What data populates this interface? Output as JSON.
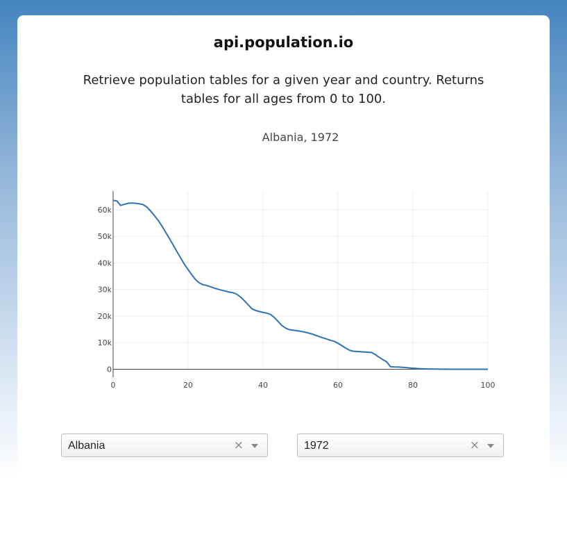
{
  "header": {
    "title": "api.population.io",
    "description": "Retrieve population tables for a given year and country. Returns tables for all ages from 0 to 100."
  },
  "filters": {
    "country": {
      "value": "Albania",
      "clear_glyph": "×"
    },
    "year": {
      "value": "1972",
      "clear_glyph": "×"
    }
  },
  "colors": {
    "line": "#2f72b4",
    "grid": "#ececec",
    "axis": "#444444"
  },
  "chart_data": {
    "type": "line",
    "title": "Albania, 1972",
    "xlabel": "",
    "ylabel": "",
    "xlim": [
      0,
      100
    ],
    "ylim": [
      -3000,
      67000
    ],
    "x_ticks": [
      0,
      20,
      40,
      60,
      80,
      100
    ],
    "x_tick_labels": [
      "0",
      "20",
      "40",
      "60",
      "80",
      "100"
    ],
    "y_ticks": [
      0,
      10000,
      20000,
      30000,
      40000,
      50000,
      60000
    ],
    "y_tick_labels": [
      "0",
      "10k",
      "20k",
      "30k",
      "40k",
      "50k",
      "60k"
    ],
    "grid": true,
    "legend": "none",
    "series": [
      {
        "x": [
          0,
          1,
          2,
          3,
          4,
          5,
          6,
          7,
          8,
          9,
          10,
          11,
          12,
          13,
          14,
          15,
          16,
          17,
          18,
          19,
          20,
          21,
          22,
          23,
          24,
          25,
          26,
          27,
          28,
          29,
          30,
          31,
          32,
          33,
          34,
          35,
          36,
          37,
          38,
          39,
          40,
          41,
          42,
          43,
          44,
          45,
          46,
          47,
          48,
          49,
          50,
          51,
          52,
          53,
          54,
          55,
          56,
          57,
          58,
          59,
          60,
          61,
          62,
          63,
          64,
          65,
          66,
          67,
          68,
          69,
          70,
          71,
          72,
          73,
          74,
          75,
          76,
          77,
          78,
          79,
          80,
          81,
          82,
          83,
          84,
          85,
          86,
          87,
          88,
          89,
          90,
          91,
          92,
          93,
          94,
          95,
          96,
          97,
          98,
          99,
          100
        ],
        "y": [
          63500,
          63300,
          61600,
          62000,
          62400,
          62500,
          62400,
          62200,
          61900,
          61000,
          59500,
          57800,
          56000,
          53900,
          51600,
          49200,
          46800,
          44300,
          41900,
          39500,
          37500,
          35500,
          33700,
          32500,
          31800,
          31500,
          31000,
          30500,
          30100,
          29700,
          29400,
          29000,
          28800,
          28200,
          27200,
          25800,
          24300,
          22800,
          22100,
          21700,
          21400,
          21100,
          20600,
          19500,
          18000,
          16500,
          15500,
          14900,
          14700,
          14500,
          14300,
          14000,
          13700,
          13300,
          12800,
          12300,
          11800,
          11400,
          10900,
          10500,
          9800,
          8900,
          8000,
          7200,
          6800,
          6700,
          6600,
          6500,
          6400,
          6300,
          5500,
          4500,
          3600,
          2800,
          1000,
          900,
          850,
          750,
          650,
          500,
          400,
          300,
          200,
          150,
          120,
          100,
          80,
          60,
          40,
          20,
          10,
          8,
          6,
          5,
          4,
          3,
          2,
          1,
          0,
          0,
          0
        ]
      }
    ]
  }
}
